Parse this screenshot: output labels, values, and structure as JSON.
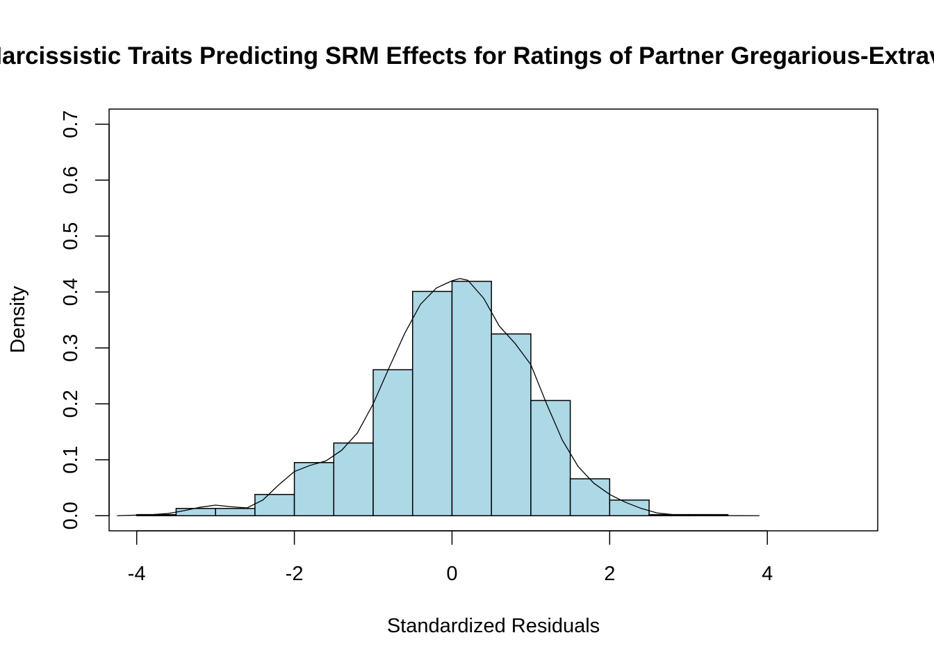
{
  "chart_data": {
    "type": "bar",
    "title": "Narcissistic Traits Predicting SRM Effects for Ratings of Partner Gregarious-Extraverted",
    "xlabel": "Standardized Residuals",
    "ylabel": "Density",
    "xlim": [
      -4.35,
      5.4
    ],
    "ylim": [
      -0.027,
      0.727
    ],
    "x_ticks": [
      -4,
      -2,
      0,
      2,
      4
    ],
    "x_tick_labels": [
      "-4",
      "-2",
      "0",
      "2",
      "4"
    ],
    "y_ticks": [
      0.0,
      0.1,
      0.2,
      0.3,
      0.4,
      0.5,
      0.6,
      0.7
    ],
    "y_tick_labels": [
      "0.0",
      "0.1",
      "0.2",
      "0.3",
      "0.4",
      "0.5",
      "0.6",
      "0.7"
    ],
    "bar_fill": "#add8e6",
    "bins": [
      {
        "x0": -4.0,
        "x1": -3.5,
        "density": 0.002
      },
      {
        "x0": -3.5,
        "x1": -3.0,
        "density": 0.013
      },
      {
        "x0": -3.0,
        "x1": -2.5,
        "density": 0.013
      },
      {
        "x0": -2.5,
        "x1": -2.0,
        "density": 0.038
      },
      {
        "x0": -2.0,
        "x1": -1.5,
        "density": 0.095
      },
      {
        "x0": -1.5,
        "x1": -1.0,
        "density": 0.13
      },
      {
        "x0": -1.0,
        "x1": -0.5,
        "density": 0.261
      },
      {
        "x0": -0.5,
        "x1": 0.0,
        "density": 0.401
      },
      {
        "x0": 0.0,
        "x1": 0.5,
        "density": 0.419
      },
      {
        "x0": 0.5,
        "x1": 1.0,
        "density": 0.325
      },
      {
        "x0": 1.0,
        "x1": 1.5,
        "density": 0.206
      },
      {
        "x0": 1.5,
        "x1": 2.0,
        "density": 0.066
      },
      {
        "x0": 2.0,
        "x1": 2.5,
        "density": 0.028
      },
      {
        "x0": 2.5,
        "x1": 3.0,
        "density": 0.002
      },
      {
        "x0": 3.0,
        "x1": 3.5,
        "density": 0.002
      }
    ],
    "density_curve": {
      "x": [
        -4.25,
        -4.0,
        -3.8,
        -3.6,
        -3.4,
        -3.2,
        -3.0,
        -2.8,
        -2.6,
        -2.4,
        -2.2,
        -2.0,
        -1.8,
        -1.6,
        -1.4,
        -1.2,
        -1.0,
        -0.8,
        -0.6,
        -0.4,
        -0.2,
        0.0,
        0.1,
        0.2,
        0.4,
        0.6,
        0.8,
        1.0,
        1.2,
        1.4,
        1.6,
        1.8,
        2.0,
        2.2,
        2.4,
        2.6,
        2.8,
        3.0,
        3.2,
        3.4,
        3.6,
        3.9
      ],
      "y": [
        0.0,
        0.001,
        0.002,
        0.004,
        0.009,
        0.015,
        0.019,
        0.016,
        0.014,
        0.028,
        0.055,
        0.079,
        0.09,
        0.098,
        0.117,
        0.148,
        0.2,
        0.264,
        0.326,
        0.378,
        0.407,
        0.42,
        0.424,
        0.421,
        0.389,
        0.339,
        0.308,
        0.27,
        0.2,
        0.135,
        0.088,
        0.058,
        0.038,
        0.024,
        0.013,
        0.005,
        0.002,
        0.001,
        0.0005,
        0.0002,
        0.0001,
        0.0
      ]
    }
  }
}
